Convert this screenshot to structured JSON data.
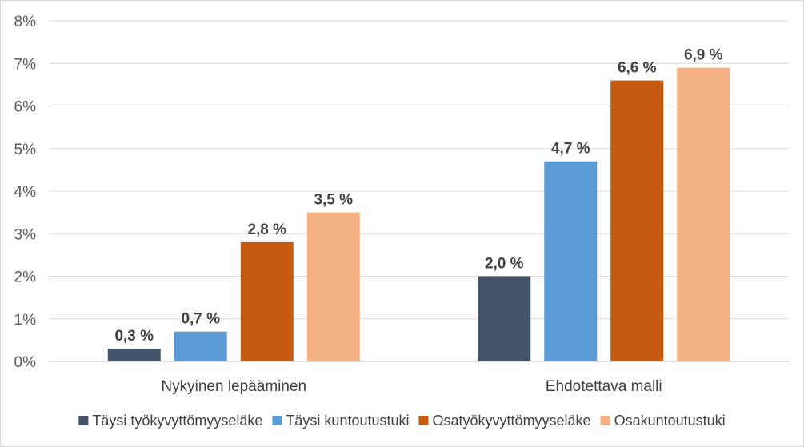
{
  "chart_data": {
    "type": "bar",
    "categories": [
      "Nykyinen lepääminen",
      "Ehdotettava malli"
    ],
    "series": [
      {
        "name": "Täysi työkyvyttömyyseläke",
        "values": [
          0.3,
          2.0
        ],
        "labels": [
          "0,3 %",
          "2,0 %"
        ],
        "color": "#44546a"
      },
      {
        "name": "Täysi kuntoutustuki",
        "values": [
          0.7,
          4.7
        ],
        "labels": [
          "0,7 %",
          "4,7 %"
        ],
        "color": "#5b9bd5"
      },
      {
        "name": "Osatyökyvyttömyyseläke",
        "values": [
          2.8,
          6.6
        ],
        "labels": [
          "2,8 %",
          "6,6 %"
        ],
        "color": "#c55a11"
      },
      {
        "name": "Osakuntoutustuki",
        "values": [
          3.5,
          6.9
        ],
        "labels": [
          "3,5 %",
          "6,9 %"
        ],
        "color": "#f4b183"
      }
    ],
    "y_ticks": [
      "0%",
      "1%",
      "2%",
      "3%",
      "4%",
      "5%",
      "6%",
      "7%",
      "8%"
    ],
    "ylim": [
      0,
      8
    ],
    "ystep": 1,
    "grid": true,
    "legend_position": "bottom",
    "title": "",
    "xlabel": "",
    "ylabel": ""
  }
}
